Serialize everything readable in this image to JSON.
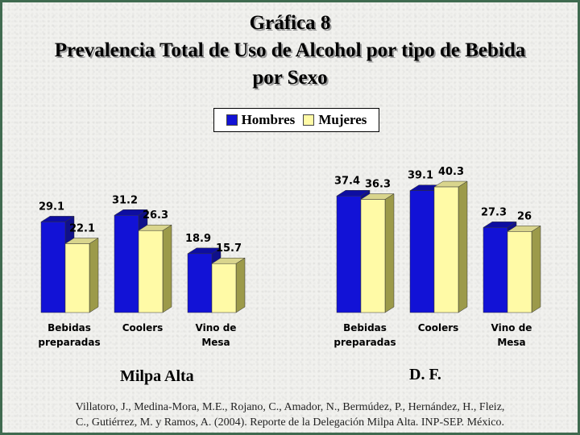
{
  "title": {
    "line1": "Gráfica 8",
    "line2": "Prevalencia Total de Uso de Alcohol por tipo de Bebida",
    "line3": "por Sexo"
  },
  "legend": {
    "hombres": "Hombres",
    "mujeres": "Mujeres",
    "position": "top-center"
  },
  "colors": {
    "hombres": "#1212d6",
    "mujeres": "#fffaa6"
  },
  "chart_data": [
    {
      "type": "bar",
      "region": "Milpa Alta",
      "categories": [
        [
          "Bebidas",
          "preparadas"
        ],
        [
          "Coolers"
        ],
        [
          "Vino de",
          "Mesa"
        ]
      ],
      "series": [
        {
          "name": "Hombres",
          "values": [
            29.1,
            31.2,
            18.9
          ]
        },
        {
          "name": "Mujeres",
          "values": [
            22.1,
            26.3,
            15.7
          ]
        }
      ],
      "ylim": [
        0,
        45
      ],
      "grid": false
    },
    {
      "type": "bar",
      "region": "D. F.",
      "categories": [
        [
          "Bebidas",
          "preparadas"
        ],
        [
          "Coolers"
        ],
        [
          "Vino de",
          "Mesa"
        ]
      ],
      "series": [
        {
          "name": "Hombres",
          "values": [
            37.4,
            39.1,
            27.3
          ]
        },
        {
          "name": "Mujeres",
          "values": [
            36.3,
            40.3,
            26
          ]
        }
      ],
      "ylim": [
        0,
        45
      ],
      "grid": false
    }
  ],
  "source": {
    "line1": "Villatoro, J., Medina-Mora, M.E., Rojano, C., Amador, N., Bermúdez, P., Hernández, H., Fleiz,",
    "line2": "C., Gutiérrez, M. y Ramos, A. (2004). Reporte de la Delegación Milpa Alta. INP-SEP. México."
  }
}
